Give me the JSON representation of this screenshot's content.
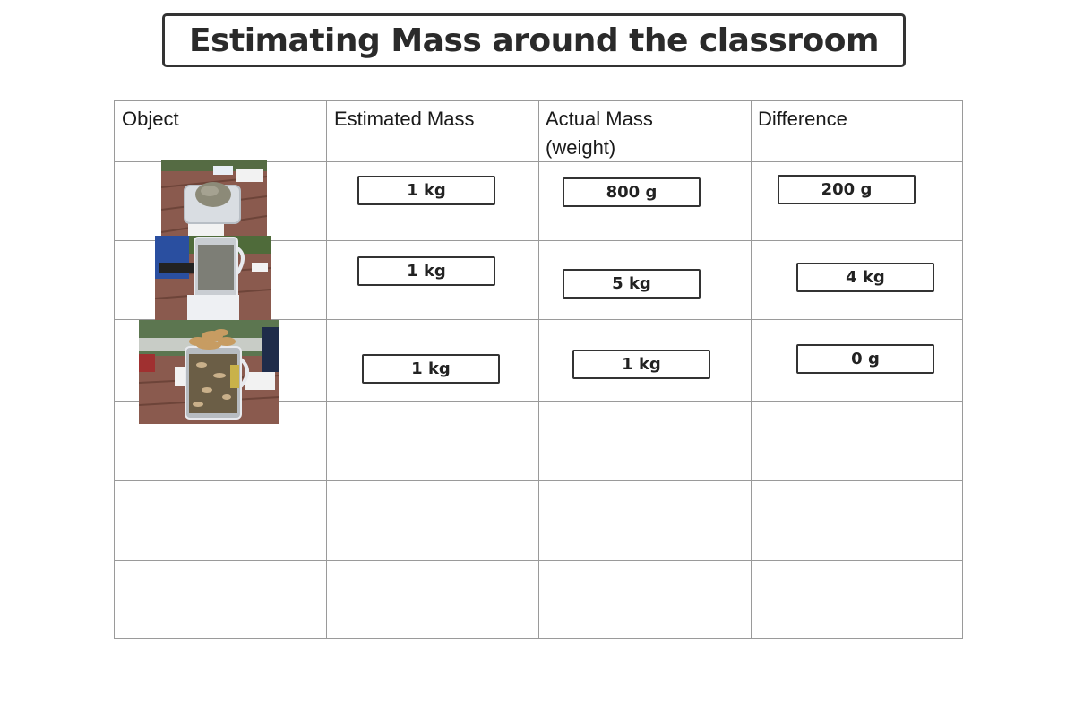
{
  "title": "Estimating Mass around the classroom",
  "table": {
    "headers": {
      "object": "Object",
      "estimated": "Estimated Mass",
      "actual_line1": "Actual Mass",
      "actual_line2": "(weight)",
      "difference": "Difference"
    },
    "rows": [
      {
        "object": "photo-container-rock",
        "estimated": "1 kg",
        "actual": "800 g",
        "difference": "200 g"
      },
      {
        "object": "photo-jug-soil",
        "estimated": "1 kg",
        "actual": "5 kg",
        "difference": "4 kg"
      },
      {
        "object": "photo-jug-leaves",
        "estimated": "1 kg",
        "actual": "1 kg",
        "difference": "0 g"
      },
      {
        "object": "",
        "estimated": "",
        "actual": "",
        "difference": ""
      },
      {
        "object": "",
        "estimated": "",
        "actual": "",
        "difference": ""
      },
      {
        "object": "",
        "estimated": "",
        "actual": "",
        "difference": ""
      }
    ]
  },
  "colors": {
    "border": "#9a9a9a",
    "box_border": "#333333",
    "deck_wood": "#8a5a4e",
    "foliage": "#4f6b3a"
  }
}
